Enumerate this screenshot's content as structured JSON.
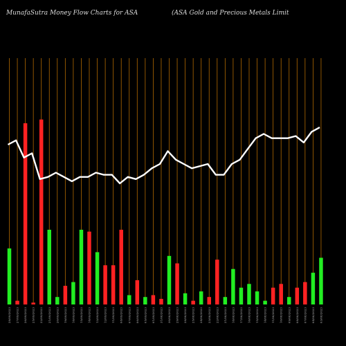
{
  "title_left": "MunafaSutra  Money Flow  Charts for ASA",
  "title_right": "(ASA Gold and Precious Metals Limit",
  "colors": {
    "background": "#000000",
    "grid": "#b36a00",
    "up": "#22ee22",
    "down": "#ff2222",
    "line": "#ffffff"
  },
  "chart_data": {
    "type": "bar",
    "ylim": [
      0,
      100
    ],
    "bars": [
      {
        "label": "28/09/2023",
        "value": 30,
        "dir": "up"
      },
      {
        "label": "27/09/2023",
        "value": 2,
        "dir": "down"
      },
      {
        "label": "26/09/2023",
        "value": 97,
        "dir": "down"
      },
      {
        "label": "25/09/2023",
        "value": 1,
        "dir": "down"
      },
      {
        "label": "22/09/2023",
        "value": 99,
        "dir": "down"
      },
      {
        "label": "21/09/2023",
        "value": 40,
        "dir": "up"
      },
      {
        "label": "20/09/2023",
        "value": 4,
        "dir": "up"
      },
      {
        "label": "19/09/2023",
        "value": 10,
        "dir": "down"
      },
      {
        "label": "18/09/2023",
        "value": 12,
        "dir": "up"
      },
      {
        "label": "15/09/2023",
        "value": 40,
        "dir": "up"
      },
      {
        "label": "14/09/2023",
        "value": 39,
        "dir": "down"
      },
      {
        "label": "13/09/2023",
        "value": 28,
        "dir": "up"
      },
      {
        "label": "12/09/2023",
        "value": 21,
        "dir": "down"
      },
      {
        "label": "11/09/2023",
        "value": 21,
        "dir": "down"
      },
      {
        "label": "08/09/2023",
        "value": 40,
        "dir": "down"
      },
      {
        "label": "07/09/2023",
        "value": 5,
        "dir": "up"
      },
      {
        "label": "06/09/2023",
        "value": 13,
        "dir": "down"
      },
      {
        "label": "05/09/2023",
        "value": 4,
        "dir": "up"
      },
      {
        "label": "01/09/2023",
        "value": 5,
        "dir": "down"
      },
      {
        "label": "31/08/2023",
        "value": 3,
        "dir": "down"
      },
      {
        "label": "30/08/2023",
        "value": 26,
        "dir": "up"
      },
      {
        "label": "29/08/2023",
        "value": 22,
        "dir": "down"
      },
      {
        "label": "28/08/2023",
        "value": 6,
        "dir": "up"
      },
      {
        "label": "25/08/2023",
        "value": 2,
        "dir": "down"
      },
      {
        "label": "24/08/2023",
        "value": 7,
        "dir": "up"
      },
      {
        "label": "23/08/2023",
        "value": 4,
        "dir": "down"
      },
      {
        "label": "22/08/2023",
        "value": 24,
        "dir": "down"
      },
      {
        "label": "21/08/2023",
        "value": 4,
        "dir": "up"
      },
      {
        "label": "18/08/2023",
        "value": 19,
        "dir": "up"
      },
      {
        "label": "17/08/2023",
        "value": 9,
        "dir": "up"
      },
      {
        "label": "16/08/2023",
        "value": 11,
        "dir": "up"
      },
      {
        "label": "15/08/2023",
        "value": 7,
        "dir": "up"
      },
      {
        "label": "14/08/2023",
        "value": 2,
        "dir": "up"
      },
      {
        "label": "11/08/2023",
        "value": 9,
        "dir": "down"
      },
      {
        "label": "10/08/2023",
        "value": 11,
        "dir": "down"
      },
      {
        "label": "09/08/2023",
        "value": 4,
        "dir": "up"
      },
      {
        "label": "08/08/2023",
        "value": 9,
        "dir": "down"
      },
      {
        "label": "07/08/2023",
        "value": 12,
        "dir": "down"
      },
      {
        "label": "04/08/2023",
        "value": 17,
        "dir": "up"
      },
      {
        "label": "03/08/2023",
        "value": 25,
        "dir": "up"
      }
    ],
    "line": [
      84,
      86,
      78,
      80,
      68,
      69,
      71,
      69,
      67,
      69,
      69,
      71,
      70,
      70,
      66,
      69,
      68,
      70,
      73,
      75,
      81,
      77,
      75,
      73,
      74,
      75,
      70,
      70,
      75,
      77,
      82,
      87,
      89,
      87,
      87,
      87,
      88,
      85,
      90,
      92
    ]
  }
}
